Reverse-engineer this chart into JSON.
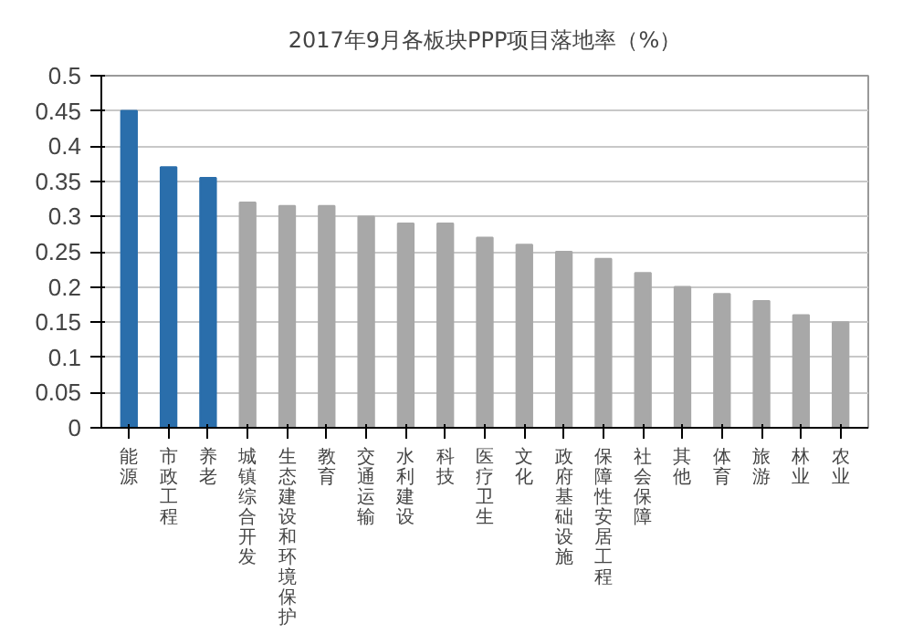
{
  "chart_data": {
    "type": "bar",
    "title": "2017年9月各板块PPP项目落地率（%）",
    "categories": [
      "能源",
      "市政工程",
      "养老",
      "城镇综合开发",
      "生态建设和环境保护",
      "教育",
      "交通运输",
      "水利建设",
      "科技",
      "医疗卫生",
      "文化",
      "政府基础设施",
      "保障性安居工程",
      "社会保障",
      "其他",
      "体育",
      "旅游",
      "林业",
      "农业"
    ],
    "values": [
      0.45,
      0.37,
      0.355,
      0.32,
      0.315,
      0.315,
      0.3,
      0.29,
      0.29,
      0.27,
      0.26,
      0.25,
      0.24,
      0.22,
      0.2,
      0.19,
      0.18,
      0.16,
      0.15
    ],
    "colors": [
      "#2a6eab",
      "#2a6eab",
      "#2a6eab",
      "#a8a8a8",
      "#a8a8a8",
      "#a8a8a8",
      "#a8a8a8",
      "#a8a8a8",
      "#a8a8a8",
      "#a8a8a8",
      "#a8a8a8",
      "#a8a8a8",
      "#a8a8a8",
      "#a8a8a8",
      "#a8a8a8",
      "#a8a8a8",
      "#a8a8a8",
      "#a8a8a8",
      "#a8a8a8"
    ],
    "ylim": [
      0,
      0.5
    ],
    "yticks": [
      0,
      0.05,
      0.1,
      0.15,
      0.2,
      0.25,
      0.3,
      0.35,
      0.4,
      0.45,
      0.5
    ],
    "grid": "y"
  }
}
